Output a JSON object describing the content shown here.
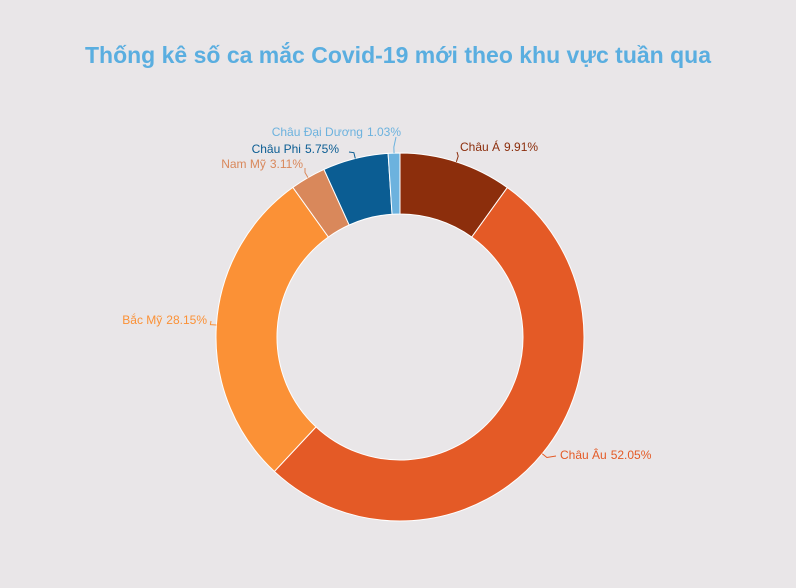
{
  "chart_data": {
    "type": "donut",
    "title": "Thống kê số ca mắc Covid-19 mới theo khu vực tuần qua",
    "categories": [
      "Châu Á",
      "Châu Âu",
      "Bắc Mỹ",
      "Nam Mỹ",
      "Châu Phi",
      "Châu Đại Dương"
    ],
    "values": [
      9.91,
      52.05,
      28.15,
      3.11,
      5.75,
      1.03
    ],
    "value_labels": [
      "9.91%",
      "52.05%",
      "28.15%",
      "3.11%",
      "5.75%",
      "1.03%"
    ],
    "colors": [
      "#8c2e0c",
      "#e45a26",
      "#fb9136",
      "#d9885b",
      "#0b5d93",
      "#6cb2de"
    ]
  }
}
